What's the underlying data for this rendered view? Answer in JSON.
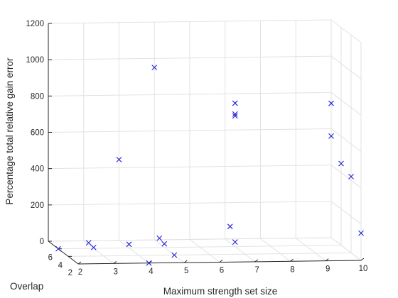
{
  "chart_data": {
    "type": "scatter3d",
    "title": "",
    "xlabel": "Maximum strength set size",
    "ylabel": "Overlap",
    "zlabel": "Percentage total relative gain error",
    "xticks": [
      "2",
      "3",
      "4",
      "5",
      "6",
      "7",
      "8",
      "9",
      "10"
    ],
    "yticks": [
      "2",
      "4",
      "6"
    ],
    "zticks": [
      "0",
      "200",
      "400",
      "600",
      "800",
      "1000",
      "1200"
    ],
    "xlim": [
      2,
      10
    ],
    "ylim": [
      2,
      8
    ],
    "zlim": [
      0,
      1200
    ],
    "grid": true,
    "marker": "x",
    "color": "#1f1fd9",
    "points": [
      {
        "x": 2,
        "y": 6,
        "z": 0
      },
      {
        "x": 3,
        "y": 6,
        "z": 5
      },
      {
        "x": 3,
        "y": 7,
        "z": 10
      },
      {
        "x": 4,
        "y": 2,
        "z": 0
      },
      {
        "x": 4,
        "y": 6,
        "z": 20
      },
      {
        "x": 4,
        "y": 8,
        "z": 445
      },
      {
        "x": 5,
        "y": 4,
        "z": 0
      },
      {
        "x": 5,
        "y": 6,
        "z": 20
      },
      {
        "x": 5,
        "y": 7,
        "z": 30
      },
      {
        "x": 5,
        "y": 8,
        "z": 950
      },
      {
        "x": 7,
        "y": 6,
        "z": 25
      },
      {
        "x": 7,
        "y": 7,
        "z": 90
      },
      {
        "x": 7,
        "y": 6,
        "z": 790
      },
      {
        "x": 7,
        "y": 6,
        "z": 730
      },
      {
        "x": 7,
        "y": 6,
        "z": 720
      },
      {
        "x": 10,
        "y": 8,
        "z": 740
      },
      {
        "x": 10,
        "y": 4,
        "z": 420
      },
      {
        "x": 10,
        "y": 6,
        "z": 450
      },
      {
        "x": 10,
        "y": 8,
        "z": 560
      },
      {
        "x": 10,
        "y": 2,
        "z": 150
      }
    ]
  }
}
